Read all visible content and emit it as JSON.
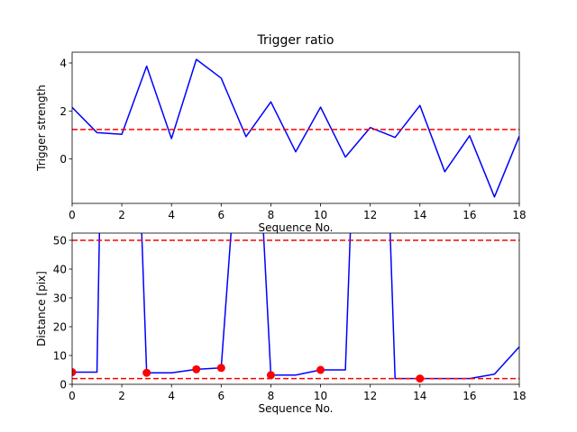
{
  "chart_data": [
    {
      "type": "line",
      "title": "Trigger ratio",
      "xlabel": "Sequence No.",
      "ylabel": "Trigger strength",
      "xlim": [
        0,
        18
      ],
      "ylim": [
        -1.85,
        4.45
      ],
      "x_ticks": [
        0,
        2,
        4,
        6,
        8,
        10,
        12,
        14,
        16,
        18
      ],
      "y_ticks": [
        0,
        2,
        4
      ],
      "grid": false,
      "series": [
        {
          "color": "#0000ff",
          "style": "solid",
          "x": [
            0,
            1,
            2,
            3,
            4,
            5,
            6,
            7,
            8,
            9,
            10,
            11,
            12,
            13,
            14,
            15,
            16,
            17,
            18
          ],
          "y": [
            2.15,
            1.1,
            1.03,
            3.87,
            0.85,
            4.15,
            3.37,
            0.93,
            2.38,
            0.3,
            2.16,
            0.08,
            1.31,
            0.9,
            2.23,
            -0.53,
            0.97,
            -1.58,
            0.95
          ]
        }
      ],
      "hlines": [
        {
          "y": 1.23,
          "color": "#ff0000",
          "style": "dashed"
        }
      ]
    },
    {
      "type": "line",
      "title": "",
      "xlabel": "Sequence No.",
      "ylabel": "Distance [pix]",
      "xlim": [
        0,
        18
      ],
      "ylim": [
        0,
        52.5
      ],
      "x_ticks": [
        0,
        2,
        4,
        6,
        8,
        10,
        12,
        14,
        16,
        18
      ],
      "y_ticks": [
        0,
        10,
        20,
        30,
        40,
        50
      ],
      "grid": false,
      "series": [
        {
          "color": "#0000ff",
          "style": "solid",
          "x": [
            0,
            1,
            1.1,
            2.8,
            3,
            4,
            5,
            6,
            6.4,
            7.7,
            8,
            9,
            10,
            11,
            11.2,
            12.8,
            13,
            14,
            15,
            16,
            17,
            18
          ],
          "y": [
            4.2,
            4.2,
            53,
            53,
            4.0,
            4.0,
            5.2,
            5.7,
            53,
            53,
            3.2,
            3.2,
            5.0,
            5.0,
            53,
            53,
            2.0,
            2.0,
            2.0,
            2.0,
            3.5,
            13.0
          ]
        },
        {
          "color": "#ff0000",
          "style": "markers",
          "x": [
            0,
            3,
            5,
            6,
            8,
            10,
            14
          ],
          "y": [
            4.2,
            4.0,
            5.2,
            5.7,
            3.2,
            5.0,
            2.0
          ]
        }
      ],
      "hlines": [
        {
          "y": 50,
          "color": "#ff0000",
          "style": "dashed"
        },
        {
          "y": 2,
          "color": "#ff0000",
          "style": "dashed"
        }
      ]
    }
  ]
}
